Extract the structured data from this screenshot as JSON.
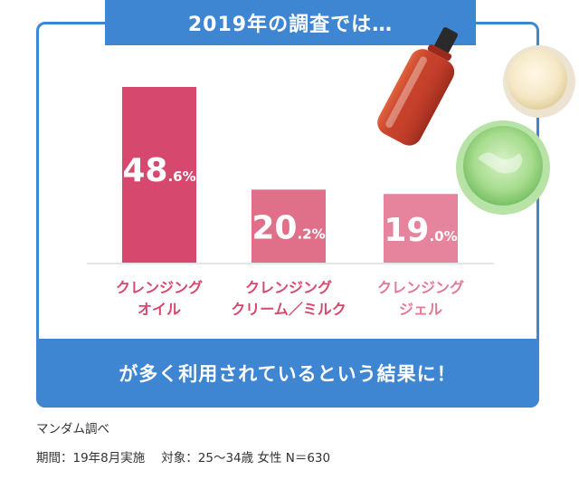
{
  "header": {
    "title": "2019年の調査では…"
  },
  "footer_band": {
    "text": "が多く利用されているという結果に！"
  },
  "notes": {
    "source": "マンダム調べ",
    "period": "期間：19年8月実施",
    "target": "対象：25〜34歳 女性 N＝630"
  },
  "colors": {
    "accent_blue": "#3f86d2",
    "bar_oil": "#d6486e",
    "bar_milk": "#e0708a",
    "bar_gel": "#e6849d"
  },
  "illustrations": [
    "oil-bottle-image",
    "cream-jar-image",
    "gel-jar-image"
  ],
  "chart_data": {
    "type": "bar",
    "categories": [
      [
        "クレンジング",
        "オイル"
      ],
      [
        "クレンジング",
        "クリーム／ミルク"
      ],
      [
        "クレンジング",
        "ジェル"
      ]
    ],
    "values": [
      48.6,
      20.2,
      19.0
    ],
    "value_labels": [
      {
        "main": "48",
        "decimal": ".6%"
      },
      {
        "main": "20",
        "decimal": ".2%"
      },
      {
        "main": "19",
        "decimal": ".0%"
      }
    ],
    "ylim": [
      0,
      48.6
    ],
    "grid": false,
    "legend": "none"
  }
}
